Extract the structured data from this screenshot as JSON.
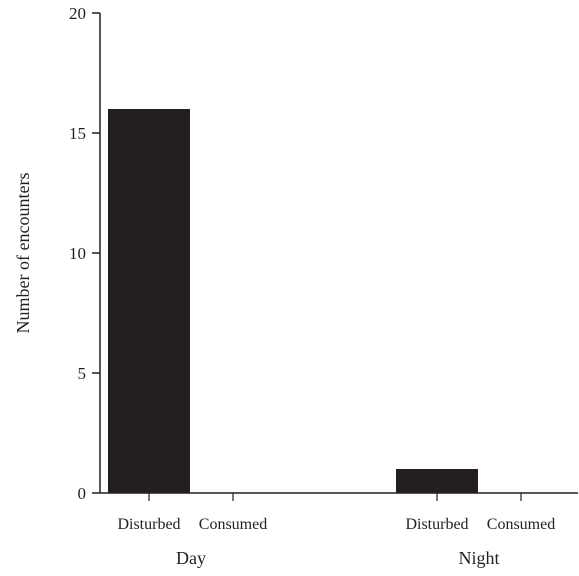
{
  "chart_data": {
    "type": "bar",
    "title": "",
    "xlabel": "",
    "ylabel": "Number of encounters",
    "ylim": [
      0,
      20
    ],
    "yticks": [
      0,
      5,
      10,
      15,
      20
    ],
    "grid": false,
    "legend": "none",
    "bar_color": "#231f20",
    "groups": [
      {
        "label": "Day",
        "categories": [
          "Disturbed",
          "Consumed"
        ],
        "values": [
          16,
          0
        ]
      },
      {
        "label": "Night",
        "categories": [
          "Disturbed",
          "Consumed"
        ],
        "values": [
          1,
          0
        ]
      }
    ]
  }
}
